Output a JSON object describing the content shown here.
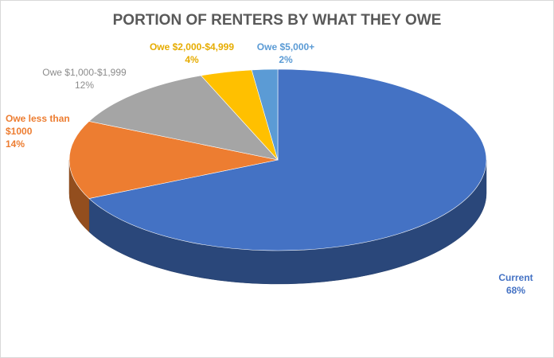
{
  "chart_data": {
    "type": "pie3d",
    "title": "PORTION OF RENTERS BY WHAT THEY OWE",
    "categories": [
      "Current",
      "Owe less than $1000",
      "Owe $1,000-$1,999",
      "Owe $2,000-$4,999",
      "Owe $5,000+"
    ],
    "values": [
      68,
      14,
      12,
      4,
      2
    ],
    "value_labels": [
      "68%",
      "14%",
      "12%",
      "4%",
      "2%"
    ],
    "colors": [
      "#4472c4",
      "#ed7d31",
      "#a5a5a5",
      "#ffc000",
      "#5b9bd5"
    ]
  }
}
